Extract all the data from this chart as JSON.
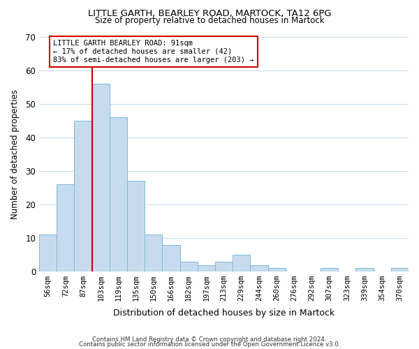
{
  "title1": "LITTLE GARTH, BEARLEY ROAD, MARTOCK, TA12 6PG",
  "title2": "Size of property relative to detached houses in Martock",
  "xlabel": "Distribution of detached houses by size in Martock",
  "ylabel": "Number of detached properties",
  "bar_labels": [
    "56sqm",
    "72sqm",
    "87sqm",
    "103sqm",
    "119sqm",
    "135sqm",
    "150sqm",
    "166sqm",
    "182sqm",
    "197sqm",
    "213sqm",
    "229sqm",
    "244sqm",
    "260sqm",
    "276sqm",
    "292sqm",
    "307sqm",
    "323sqm",
    "339sqm",
    "354sqm",
    "370sqm"
  ],
  "bar_heights": [
    11,
    26,
    45,
    56,
    46,
    27,
    11,
    8,
    3,
    2,
    3,
    5,
    2,
    1,
    0,
    0,
    1,
    0,
    1,
    0,
    1
  ],
  "bar_color": "#c6dcee",
  "bar_edge_color": "#7db8d8",
  "ylim": [
    0,
    70
  ],
  "yticks": [
    0,
    10,
    20,
    30,
    40,
    50,
    60,
    70
  ],
  "vline_color": "#cc0000",
  "vline_x_index": 2.5,
  "annotation_text": "LITTLE GARTH BEARLEY ROAD: 91sqm\n← 17% of detached houses are smaller (42)\n83% of semi-detached houses are larger (203) →",
  "annotation_box_color": "#ffffff",
  "annotation_box_edge": "#cc0000",
  "footer1": "Contains HM Land Registry data © Crown copyright and database right 2024.",
  "footer2": "Contains public sector information licensed under the Open Government Licence v3.0.",
  "background_color": "#ffffff",
  "grid_color": "#ccddee"
}
